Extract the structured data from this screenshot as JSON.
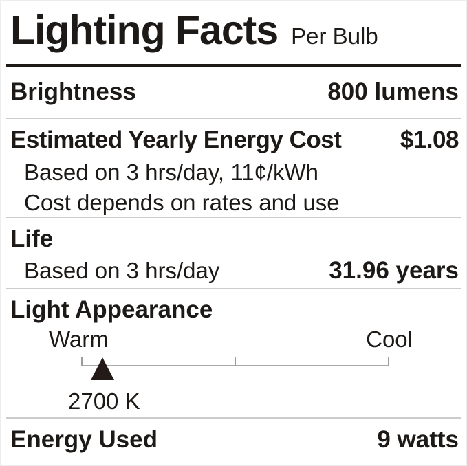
{
  "colors": {
    "text": "#1c1917",
    "divider": "#cccccc",
    "title_rule": "#1c1917",
    "scale_line": "#a9a9a9",
    "scale_tick": "#9b9b9b",
    "marker_fill": "#241b18",
    "background": "#ffffff"
  },
  "label": {
    "title": "Lighting Facts",
    "subtitle": "Per Bulb",
    "rows": {
      "brightness": {
        "name": "Brightness",
        "value": "800 lumens"
      },
      "energy_cost": {
        "name": "Estimated Yearly Energy Cost",
        "value": "$1.08",
        "note1": "Based on 3 hrs/day, 11¢/kWh",
        "note2": "Cost depends on rates and use"
      },
      "life": {
        "name": "Life",
        "basis": "Based on 3 hrs/day",
        "value": "31.96 years"
      },
      "light_appearance": {
        "name": "Light Appearance",
        "warm": "Warm",
        "cool": "Cool",
        "marker_value": "2700 K",
        "marker_position_pct": 6.9,
        "ticks_pct": [
          0,
          50,
          100
        ]
      },
      "energy_used": {
        "name": "Energy Used",
        "value": "9 watts"
      }
    }
  }
}
